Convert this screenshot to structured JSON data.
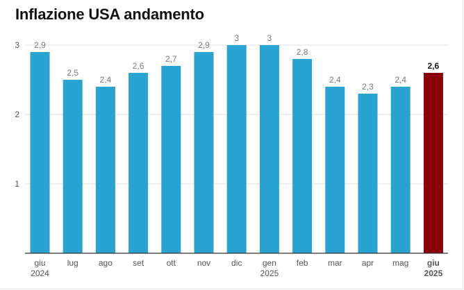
{
  "title": "Inflazione USA andamento",
  "colors": {
    "bar": "#29a3cf",
    "highlight": "#8b0008",
    "grid": "#dcdcdc",
    "axis": "#333333"
  },
  "chart_data": {
    "type": "bar",
    "categories": [
      "giu 2024",
      "lug",
      "ago",
      "set",
      "ott",
      "nov",
      "dic",
      "gen 2025",
      "feb",
      "mar",
      "apr",
      "mag",
      "giu 2025"
    ],
    "category_lines": [
      [
        "giu",
        "2024"
      ],
      [
        "lug"
      ],
      [
        "ago"
      ],
      [
        "set"
      ],
      [
        "ott"
      ],
      [
        "nov"
      ],
      [
        "dic"
      ],
      [
        "gen",
        "2025"
      ],
      [
        "feb"
      ],
      [
        "mar"
      ],
      [
        "apr"
      ],
      [
        "mag"
      ],
      [
        "giu",
        "2025"
      ]
    ],
    "values": [
      2.9,
      2.5,
      2.4,
      2.6,
      2.7,
      2.9,
      3,
      3,
      2.8,
      2.4,
      2.3,
      2.4,
      2.6
    ],
    "value_labels": [
      "2,9",
      "2,5",
      "2,4",
      "2,6",
      "2,7",
      "2,9",
      "3",
      "3",
      "2,8",
      "2,4",
      "2,3",
      "2,4",
      "2,6"
    ],
    "highlight_index": 12,
    "yticks": [
      1,
      2,
      3
    ],
    "ylim": [
      0,
      3
    ],
    "grid": true,
    "xlabel": "",
    "ylabel": ""
  }
}
